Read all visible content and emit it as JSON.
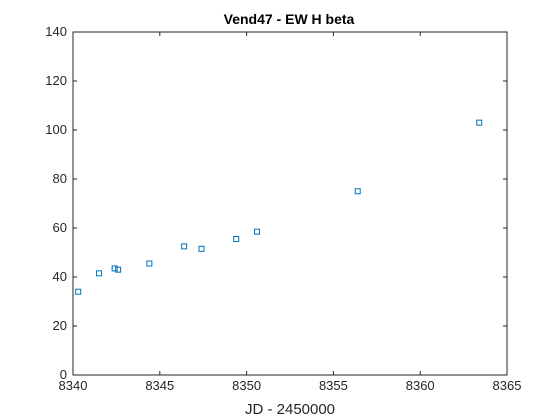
{
  "chart_data": {
    "type": "scatter",
    "title": "Vend47 - EW H beta",
    "xlabel": "JD - 2450000",
    "ylabel": "",
    "xlim": [
      8340,
      8365
    ],
    "ylim": [
      0,
      140
    ],
    "xticks": [
      8340,
      8345,
      8350,
      8355,
      8360,
      8365
    ],
    "yticks": [
      0,
      20,
      40,
      60,
      80,
      100,
      120,
      140
    ],
    "grid": false,
    "marker": "square",
    "series": [
      {
        "x": [
          8340.3,
          8341.5,
          8342.4,
          8342.6,
          8344.4,
          8346.4,
          8347.4,
          8349.4,
          8350.6,
          8356.4,
          8363.4
        ],
        "y": [
          34,
          41.5,
          43.5,
          43,
          45.5,
          52.5,
          51.5,
          55.5,
          58.5,
          75,
          103
        ]
      }
    ],
    "colors": {
      "marker": "#0072bd",
      "axis": "#262626"
    }
  }
}
